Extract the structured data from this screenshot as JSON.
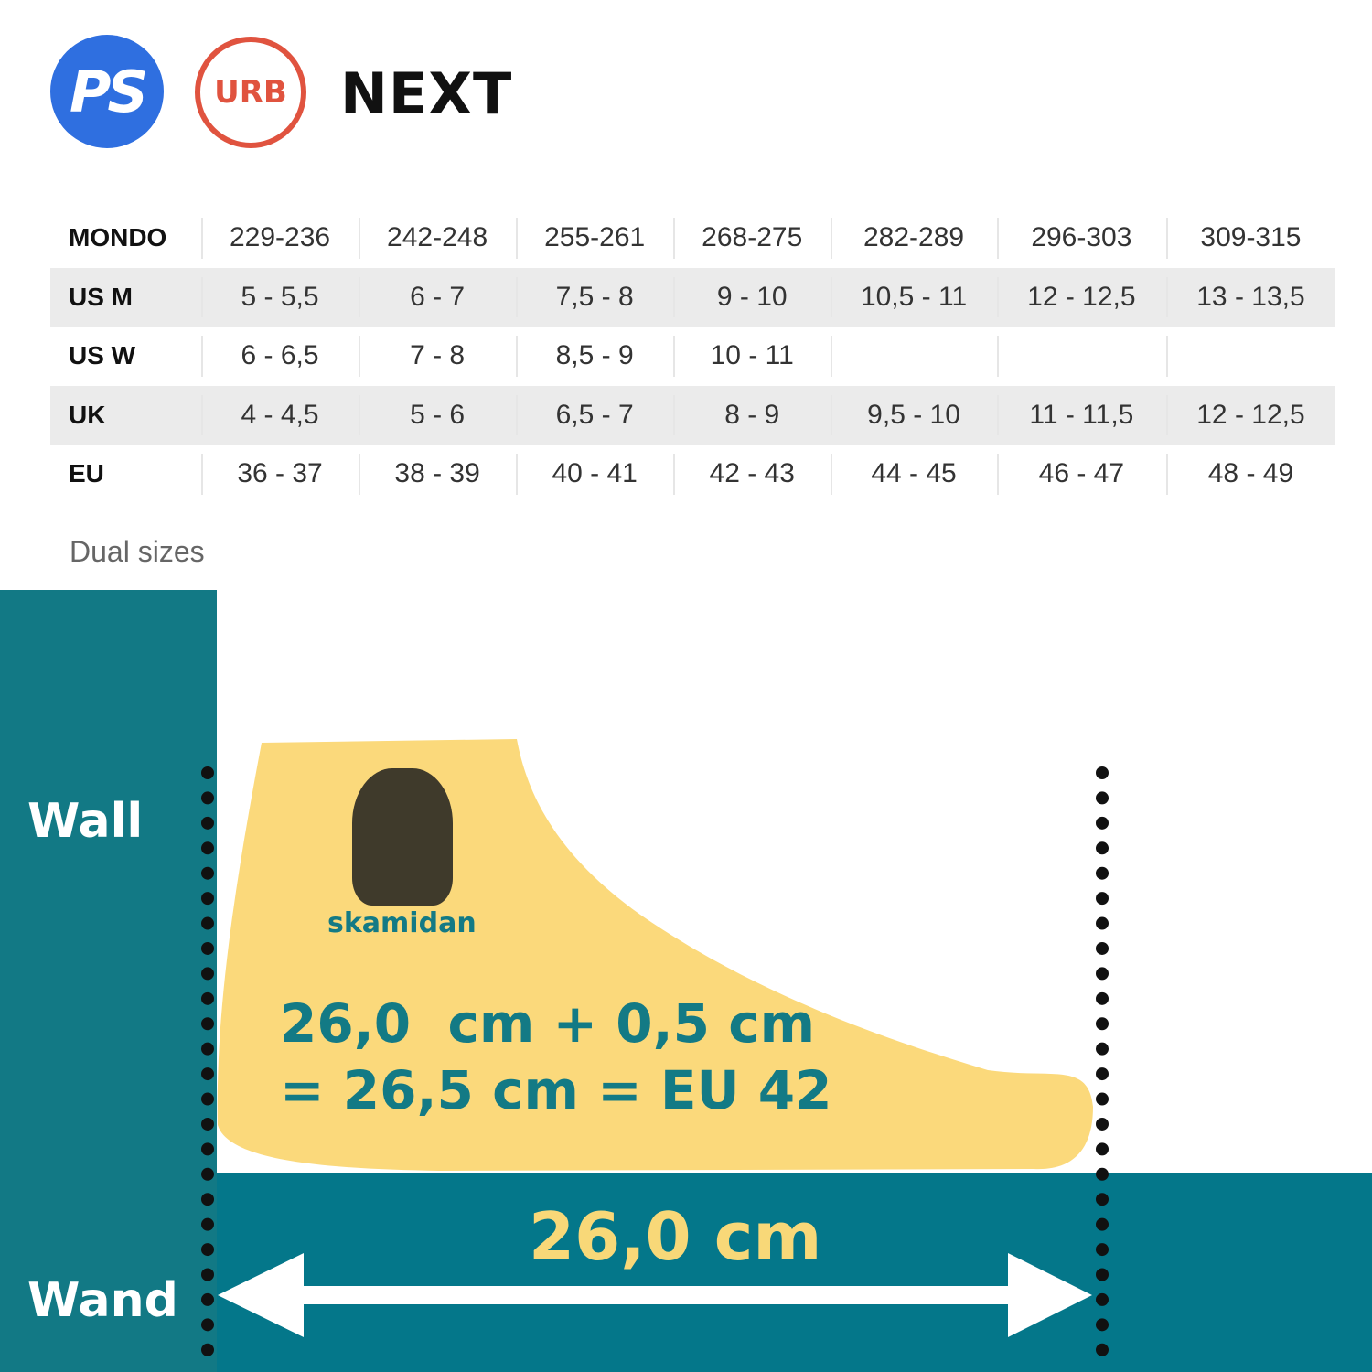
{
  "brand": {
    "ps_logo": "PS",
    "urb_logo": "URB",
    "product": "NEXT"
  },
  "table": {
    "rows": [
      {
        "label": "MONDO",
        "cells": [
          "229-236",
          "242-248",
          "255-261",
          "268-275",
          "282-289",
          "296-303",
          "309-315"
        ]
      },
      {
        "label": "US M",
        "cells": [
          "5 - 5,5",
          "6 - 7",
          "7,5 - 8",
          "9 - 10",
          "10,5 - 11",
          "12 - 12,5",
          "13 - 13,5"
        ]
      },
      {
        "label": "US W",
        "cells": [
          "6 - 6,5",
          "7 - 8",
          "8,5 - 9",
          "10 - 11",
          "",
          "",
          ""
        ]
      },
      {
        "label": "UK",
        "cells": [
          "4 - 4,5",
          "5 - 6",
          "6,5 - 7",
          "8 - 9",
          "9,5 - 10",
          "11 - 11,5",
          "12 - 12,5"
        ]
      },
      {
        "label": "EU",
        "cells": [
          "36 - 37",
          "38 - 39",
          "40 - 41",
          "42 - 43",
          "44 - 45",
          "46 - 47",
          "48 - 49"
        ]
      }
    ]
  },
  "note": "Dual sizes",
  "illustration": {
    "wall_en": "Wall",
    "wall_de": "Wand",
    "logo": "skamidan",
    "calc_line1": "26,0  cm + 0,5 cm",
    "calc_line2": "= 26,5 cm = EU 42",
    "measurement": "26,0 cm",
    "colors": {
      "teal": "#127985",
      "foot": "#fbd97b",
      "text_teal": "#137a85",
      "measure": "#f8d878"
    }
  }
}
